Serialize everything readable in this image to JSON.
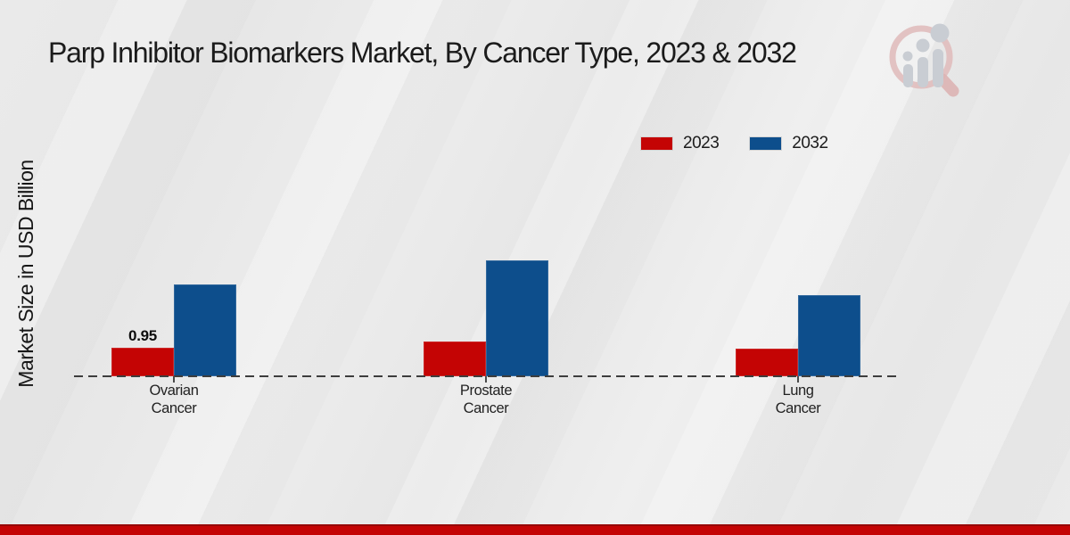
{
  "chart_data": {
    "type": "bar",
    "title": "Parp Inhibitor Biomarkers Market, By Cancer Type, 2023 & 2032",
    "xlabel": "",
    "ylabel": "Market Size in USD Billion",
    "categories": [
      "Ovarian Cancer",
      "Prostate Cancer",
      "Lung Cancer"
    ],
    "series": [
      {
        "name": "2023",
        "color": "#c40404",
        "values": [
          0.95,
          1.15,
          0.9
        ]
      },
      {
        "name": "2032",
        "color": "#0d4e8c",
        "values": [
          3.0,
          3.8,
          2.65
        ]
      }
    ],
    "value_labels": [
      {
        "series_index": 0,
        "category_index": 0,
        "text": "0.95"
      }
    ],
    "ylim": [
      0,
      4.5
    ],
    "grid": false,
    "legend_position": "top-right",
    "baseline_style": "dashed"
  },
  "branding": {
    "watermark": "market-research-magnifier-logo",
    "footer_color": "#c40404"
  }
}
